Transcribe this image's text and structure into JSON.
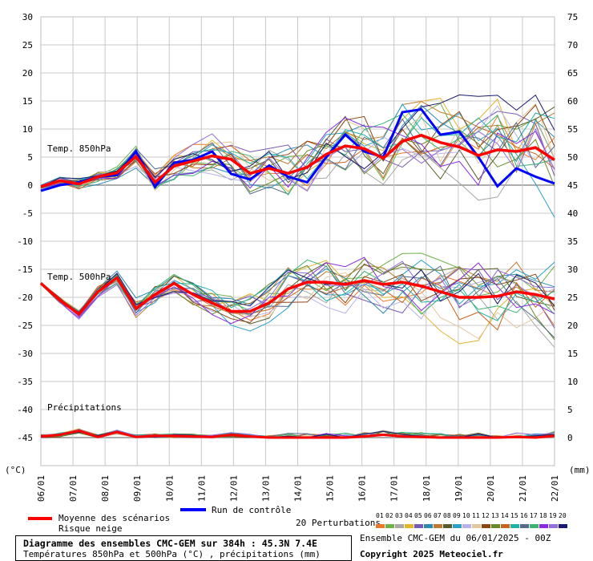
{
  "chart_data": {
    "type": "line",
    "y_left": {
      "unit": "(°C)",
      "range": [
        -50,
        30
      ],
      "ticks": [
        30,
        25,
        20,
        15,
        10,
        5,
        0,
        -5,
        -10,
        -15,
        -20,
        -25,
        -30,
        -35,
        -40,
        -45
      ]
    },
    "y_right": {
      "unit": "(mm)",
      "ticks": [
        75,
        70,
        65,
        60,
        55,
        50,
        45,
        40,
        35,
        30,
        25,
        20,
        15,
        10,
        5,
        0
      ]
    },
    "x_ticks": [
      "06/01",
      "07/01",
      "08/01",
      "09/01",
      "10/01",
      "11/01",
      "12/01",
      "13/01",
      "14/01",
      "15/01",
      "16/01",
      "17/01",
      "18/01",
      "19/01",
      "20/01",
      "21/01",
      "22/01"
    ],
    "grid": true,
    "panels": {
      "t850": {
        "label": "Temp. 850hPa",
        "mean": [
          -0.3,
          0.8,
          0.2,
          1.5,
          2.2,
          5.1,
          0.5,
          3.4,
          4.3,
          5.2,
          4.6,
          2.1,
          3.0,
          2.1,
          3.2,
          5.5,
          7.0,
          6.5,
          4.8,
          7.8,
          8.9,
          7.6,
          6.8,
          5.3,
          6.3,
          6.0,
          6.7,
          4.5
        ],
        "control": [
          -1.0,
          0.0,
          0.5,
          1.5,
          1.8,
          6.0,
          -0.3,
          4.0,
          4.5,
          6.0,
          2.0,
          1.0,
          3.5,
          1.5,
          0.5,
          5.0,
          9.0,
          6.0,
          5.0,
          13.0,
          13.5,
          9.0,
          9.5,
          5.0,
          -0.2,
          3.0,
          1.5,
          0.3
        ]
      },
      "t500": {
        "label": "Temp. 500hPa",
        "mean": [
          -17.5,
          -20.5,
          -23.0,
          -19.0,
          -16.5,
          -22.0,
          -19.5,
          -17.5,
          -19.5,
          -21.0,
          -22.5,
          -22.5,
          -21.0,
          -18.5,
          -17.3,
          -17.3,
          -17.7,
          -17.0,
          -17.7,
          -17.3,
          -18.0,
          -19.0,
          -20.0,
          -20.0,
          -19.8,
          -19.0,
          -19.5,
          -20.3
        ]
      },
      "precip": {
        "label": "Précipitations",
        "mean_mm": [
          0.2,
          0.5,
          1.2,
          0.1,
          1.0,
          0.1,
          0.3,
          0.3,
          0.2,
          0.1,
          0.5,
          0.2,
          0,
          0,
          0,
          0,
          0,
          0.2,
          0.5,
          0.2,
          0.1,
          0,
          0,
          0,
          0,
          0.1,
          0,
          0.3
        ]
      }
    }
  },
  "legend": {
    "mean_label": "Moyenne des scénarios",
    "snow_label": "Risque neige",
    "control_label": "Run de contrôle",
    "perturb_label": "20 Perturbations",
    "perturb_numbers": [
      "01",
      "02",
      "03",
      "04",
      "05",
      "06",
      "07",
      "08",
      "09",
      "10",
      "11",
      "12",
      "13",
      "14",
      "15",
      "16",
      "17",
      "18",
      "19",
      "20"
    ],
    "perturb_colors": [
      "#e8792b",
      "#6fb24a",
      "#a8a8a8",
      "#e3b52a",
      "#7b5ab4",
      "#2b8ab3",
      "#bf7a2f",
      "#5a5a2a",
      "#2ba0c9",
      "#b9b2e8",
      "#e0c8a0",
      "#8b4513",
      "#6a8a2a",
      "#c8641e",
      "#20b2aa",
      "#556b8b",
      "#3cb371",
      "#8a2be2",
      "#9370db",
      "#191970"
    ],
    "mean_color": "#ff0000",
    "control_color": "#0000ff"
  },
  "title": {
    "line1": "Diagramme des ensembles CMC-GEM sur 384h : 45.3N 7.4E",
    "line2": "Températures 850hPa et 500hPa (°C) , précipitations (mm)"
  },
  "run_info": "Ensemble CMC-GEM du 06/01/2025 - 00Z",
  "copyright": "Copyright 2025 Meteociel.fr"
}
